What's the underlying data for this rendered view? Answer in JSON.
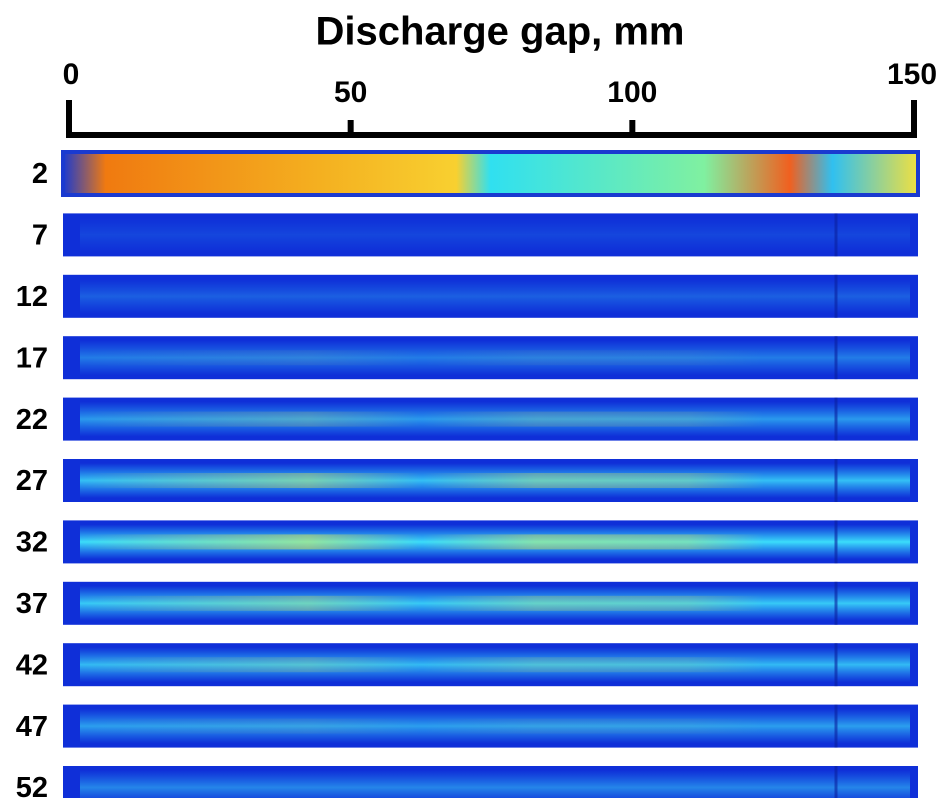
{
  "axis": {
    "title": "Discharge gap, mm",
    "ticks": [
      0,
      50,
      100,
      150
    ]
  },
  "rows": [
    "2",
    "7",
    "12",
    "17",
    "22",
    "27",
    "32",
    "37",
    "42",
    "47",
    "52"
  ]
}
